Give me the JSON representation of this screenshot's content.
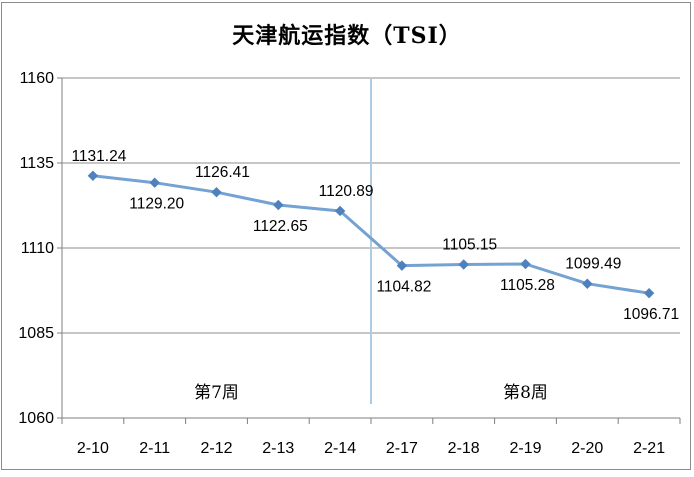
{
  "chart_data": {
    "type": "line",
    "title": "天津航运指数（TSI）",
    "categories": [
      "2-10",
      "2-11",
      "2-12",
      "2-13",
      "2-14",
      "2-17",
      "2-18",
      "2-19",
      "2-20",
      "2-21"
    ],
    "series": [
      {
        "name": "TSI",
        "values": [
          1131.24,
          1129.2,
          1126.41,
          1122.65,
          1120.89,
          1104.82,
          1105.15,
          1105.28,
          1099.49,
          1096.71
        ],
        "point_labels": [
          "1131.24",
          "1129.20",
          "1126.41",
          "1122.65",
          "1120.89",
          "1104.82",
          "1105.15",
          "1105.28",
          "1099.49",
          "1096.71"
        ],
        "label_placement": [
          "above",
          "below",
          "above",
          "below",
          "above",
          "below",
          "above",
          "below",
          "above",
          "below"
        ]
      }
    ],
    "ylim": [
      1060,
      1160
    ],
    "y_ticks": [
      "1060",
      "1085",
      "1110",
      "1135",
      "1160"
    ],
    "grid": "horizontal-on",
    "legend": "none",
    "xlabel": "",
    "ylabel": "",
    "separator_after_category_index": 4,
    "annotations": [
      {
        "text": "第7周",
        "from_index": 0,
        "to_index": 4
      },
      {
        "text": "第8周",
        "from_index": 5,
        "to_index": 9
      }
    ],
    "colors": {
      "line": "#74a2d2",
      "marker": "#4f81bd",
      "separator": "#aecbe2",
      "gridline": "#8e8e8e",
      "axis": "#7f7f7f",
      "text": "#000000",
      "border": "#8c8c8c",
      "background": "#ffffff"
    }
  }
}
